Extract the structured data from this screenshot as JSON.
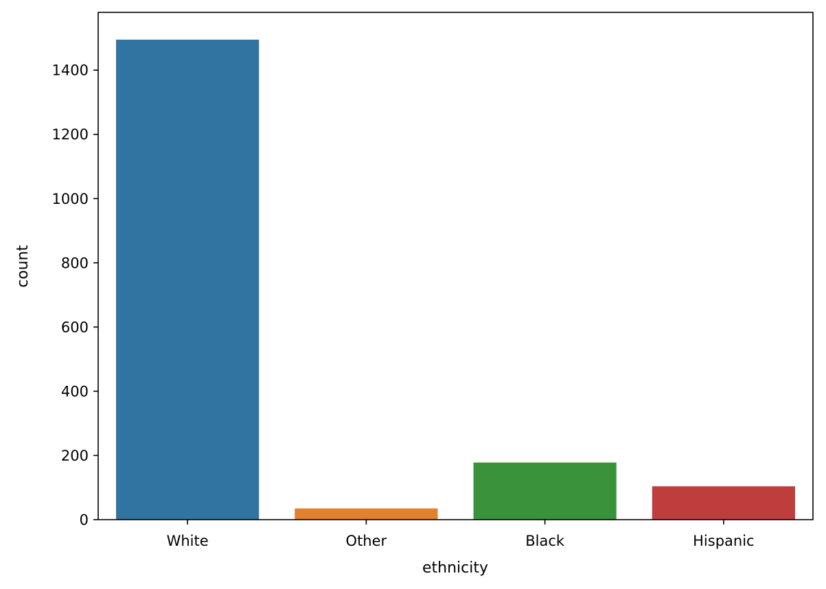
{
  "chart_data": {
    "type": "bar",
    "title": "",
    "xlabel": "ethnicity",
    "ylabel": "count",
    "categories": [
      "White",
      "Other",
      "Black",
      "Hispanic"
    ],
    "values": [
      1495,
      35,
      178,
      104
    ],
    "colors": [
      "#3274a1",
      "#e1812c",
      "#3a923a",
      "#c03d3e"
    ],
    "ylim": [
      0,
      1580
    ],
    "yticks": [
      0,
      200,
      400,
      600,
      800,
      1000,
      1200,
      1400
    ],
    "grid": false,
    "legend": "none"
  }
}
